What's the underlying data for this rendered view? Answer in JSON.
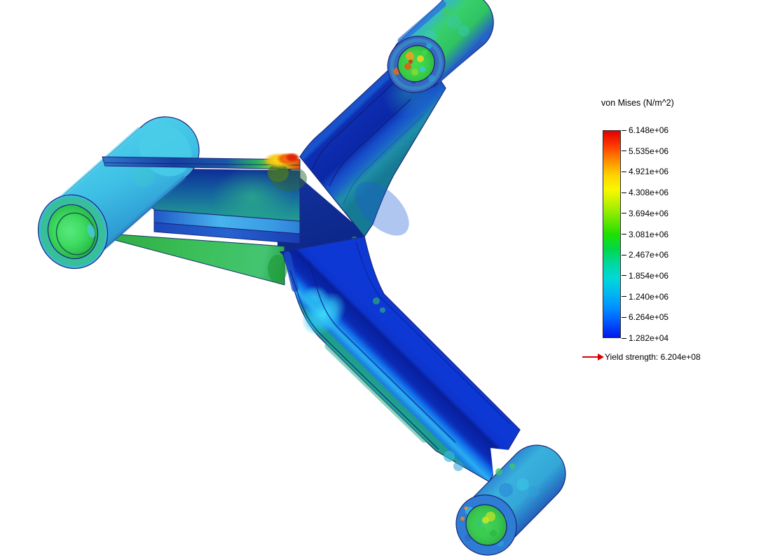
{
  "app": {
    "description": "FEA von Mises stress result viewport showing a Y-shaped bracket with three cylindrical bosses"
  },
  "viewport": {
    "background": "#ffffff",
    "edge_color": "#1b2878",
    "hotspot_max_color": "#e01c06",
    "body_base_colors": [
      "#3db8d8",
      "#38d06c",
      "#0a28a8",
      "#2aaef0"
    ]
  },
  "legend": {
    "title": "von Mises (N/m^2)",
    "levels": [
      "6.148e+06",
      "5.535e+06",
      "4.921e+06",
      "4.308e+06",
      "3.694e+06",
      "3.081e+06",
      "2.467e+06",
      "1.854e+06",
      "1.240e+06",
      "6.264e+05",
      "1.282e+04"
    ],
    "yield_label": "Yield strength: 6.204e+08",
    "arrow_color": "#dd0000",
    "text_color": "#000000",
    "colormap": [
      "#e00000",
      "#ff3800",
      "#ff8c00",
      "#ffd300",
      "#f8f800",
      "#b8f000",
      "#6ce800",
      "#20e000",
      "#00d848",
      "#00d8a0",
      "#00d8d8",
      "#00b8f0",
      "#0090ff",
      "#0054ff",
      "#0018e8"
    ]
  },
  "chart_data": {
    "type": "heatmap",
    "title": "von Mises (N/m^2)",
    "units": "N/m^2",
    "legend_position": "right",
    "scale_labels": [
      "6.148e+06",
      "5.535e+06",
      "4.921e+06",
      "4.308e+06",
      "3.694e+06",
      "3.081e+06",
      "2.467e+06",
      "1.854e+06",
      "1.240e+06",
      "6.264e+05",
      "1.282e+04"
    ],
    "scale_values": [
      6148000,
      5535000,
      4921000,
      4308000,
      3694000,
      3081000,
      2467000,
      1854000,
      1240000,
      626400,
      12820
    ],
    "range": [
      12820,
      6148000
    ],
    "yield_strength": 620400000,
    "yield_annotation": "Yield strength: 6.204e+08",
    "colormap_top_to_bottom": [
      "#e00000",
      "#ff3800",
      "#ff8c00",
      "#ffd300",
      "#f8f800",
      "#b8f000",
      "#6ce800",
      "#20e000",
      "#00d848",
      "#00d8a0",
      "#00d8d8",
      "#00b8f0",
      "#0090ff",
      "#0054ff",
      "#0018e8"
    ],
    "subject": "Y-shaped bracket (3 cylindrical bosses with holes); peak stress red/orange at central rib junction and around upper bolt hole; arms mostly deep blue (low stress), bosses cyan/green"
  }
}
